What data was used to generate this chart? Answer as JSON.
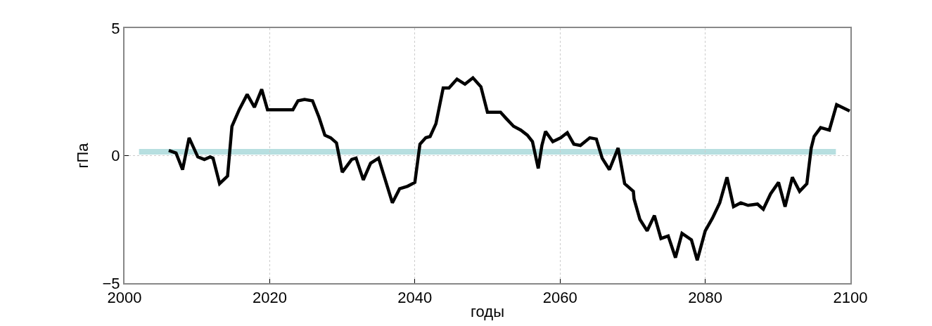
{
  "chart_data": {
    "type": "line",
    "xlabel": "годы",
    "ylabel": "гПа",
    "x": [
      2006.1,
      2007.1,
      2008.0,
      2008.9,
      2010.1,
      2011.0,
      2011.8,
      2012.2,
      2013.1,
      2014.2,
      2014.8,
      2015.8,
      2016.9,
      2017.9,
      2018.9,
      2019.7,
      2023.2,
      2023.9,
      2024.8,
      2025.9,
      2026.8,
      2027.6,
      2028.4,
      2029.2,
      2030.0,
      2031.3,
      2031.9,
      2032.9,
      2033.9,
      2035.0,
      2036.9,
      2037.9,
      2039.0,
      2040.0,
      2040.7,
      2041.5,
      2042.1,
      2042.9,
      2043.9,
      2044.7,
      2045.8,
      2046.9,
      2048.0,
      2049.1,
      2050.0,
      2051.8,
      2052.6,
      2053.6,
      2054.6,
      2055.5,
      2056.2,
      2057.0,
      2057.5,
      2058.0,
      2059.0,
      2060.1,
      2061.0,
      2061.9,
      2062.8,
      2064.1,
      2065.0,
      2065.8,
      2066.8,
      2068.0,
      2068.9,
      2070.1,
      2070.2,
      2071.0,
      2072.0,
      2073.0,
      2073.9,
      2074.9,
      2075.9,
      2076.8,
      2078.1,
      2078.9,
      2080.0,
      2081.0,
      2082.0,
      2083.0,
      2083.9,
      2084.9,
      2085.9,
      2087.2,
      2088.0,
      2089.0,
      2090.1,
      2091.0,
      2092.0,
      2093.0,
      2094.0,
      2094.6,
      2095.0,
      2095.9,
      2097.1,
      2098.1,
      2099.9
    ],
    "series": [
      {
        "color": "#000000",
        "values": [
          0.2,
          0.1,
          -0.55,
          0.7,
          -0.05,
          -0.15,
          -0.05,
          -0.1,
          -1.1,
          -0.8,
          1.15,
          1.8,
          2.4,
          1.9,
          2.6,
          1.8,
          1.8,
          2.15,
          2.2,
          2.15,
          1.5,
          0.8,
          0.7,
          0.5,
          -0.65,
          -0.15,
          -0.1,
          -0.95,
          -0.3,
          -0.1,
          -1.85,
          -1.3,
          -1.2,
          -1.05,
          0.45,
          0.7,
          0.75,
          1.25,
          2.65,
          2.65,
          3.0,
          2.8,
          3.05,
          2.7,
          1.7,
          1.7,
          1.45,
          1.15,
          1.0,
          0.8,
          0.55,
          -0.5,
          0.4,
          0.95,
          0.55,
          0.7,
          0.9,
          0.45,
          0.4,
          0.7,
          0.65,
          -0.1,
          -0.55,
          0.3,
          -1.1,
          -1.4,
          -1.7,
          -2.5,
          -2.95,
          -2.35,
          -3.25,
          -3.15,
          -4.0,
          -3.05,
          -3.3,
          -4.1,
          -2.95,
          -2.45,
          -1.85,
          -0.85,
          -2.0,
          -1.85,
          -1.95,
          -1.9,
          -2.1,
          -1.5,
          -1.05,
          -2.0,
          -0.85,
          -1.4,
          -1.1,
          0.3,
          0.75,
          1.1,
          1.0,
          2.0,
          1.75
        ]
      }
    ],
    "xlim": [
      2000,
      2100
    ],
    "xticks": [
      2000,
      2020,
      2040,
      2060,
      2080,
      2100
    ],
    "ylim": [
      -5,
      5
    ],
    "yticks": [
      {
        "value": -5,
        "label": "−5"
      },
      0,
      5
    ],
    "ref_lines": [
      {
        "axis": "y",
        "value": 0.15,
        "color": "#b7dfe0"
      }
    ],
    "grid": true,
    "marker": "none",
    "line_style": "solid"
  }
}
